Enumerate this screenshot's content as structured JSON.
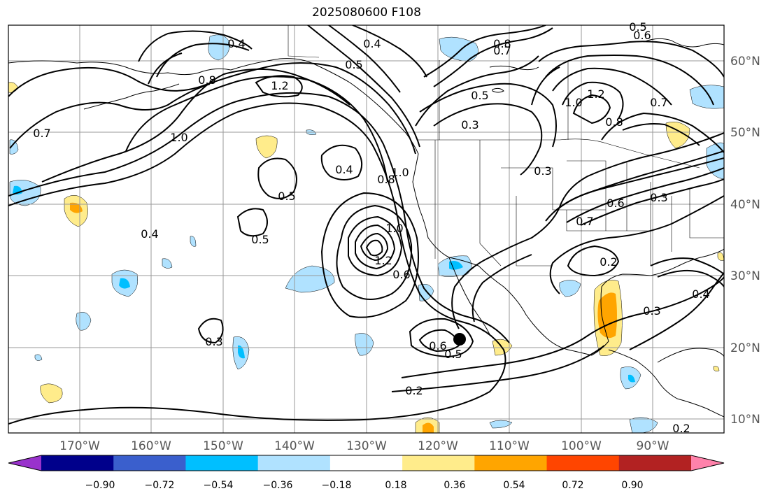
{
  "title": "2025080600 F108",
  "lat_labels": [
    "60°N",
    "50°N",
    "40°N",
    "30°N",
    "20°N",
    "10°N"
  ],
  "lon_labels": [
    "170°W",
    "160°W",
    "150°W",
    "140°W",
    "130°W",
    "120°W",
    "110°W",
    "100°W",
    "90°W"
  ],
  "colorbar": {
    "ticks": [
      "−0.90",
      "−0.72",
      "−0.54",
      "−0.36",
      "−0.18",
      "0.18",
      "0.36",
      "0.54",
      "0.72",
      "0.90"
    ],
    "colors": [
      "#9932cc",
      "#00008b",
      "#3a5fcd",
      "#00bfff",
      "#b0e2ff",
      "#ffffff",
      "#ffec8b",
      "#ffa500",
      "#ff4500",
      "#b22222",
      "#ff82ab"
    ]
  },
  "contour_labels": [
    "0.4",
    "0.4",
    "0.5",
    "0.8",
    "0.7",
    "0.8",
    "1.2",
    "1.0",
    "0.7",
    "0.5",
    "0.3",
    "0.4",
    "0.5",
    "0.5",
    "0.8",
    "1.0",
    "1.0",
    "1.2",
    "0.6",
    "0.4",
    "0.6",
    "0.5",
    "0.2",
    "1.0",
    "1.2",
    "0.7",
    "0.8",
    "0.7",
    "0.6",
    "0.3",
    "0.2",
    "0.3",
    "0.4",
    "0.2",
    "0.6",
    "0.5",
    "0.3",
    "0.3"
  ],
  "marker": "storm-center"
}
